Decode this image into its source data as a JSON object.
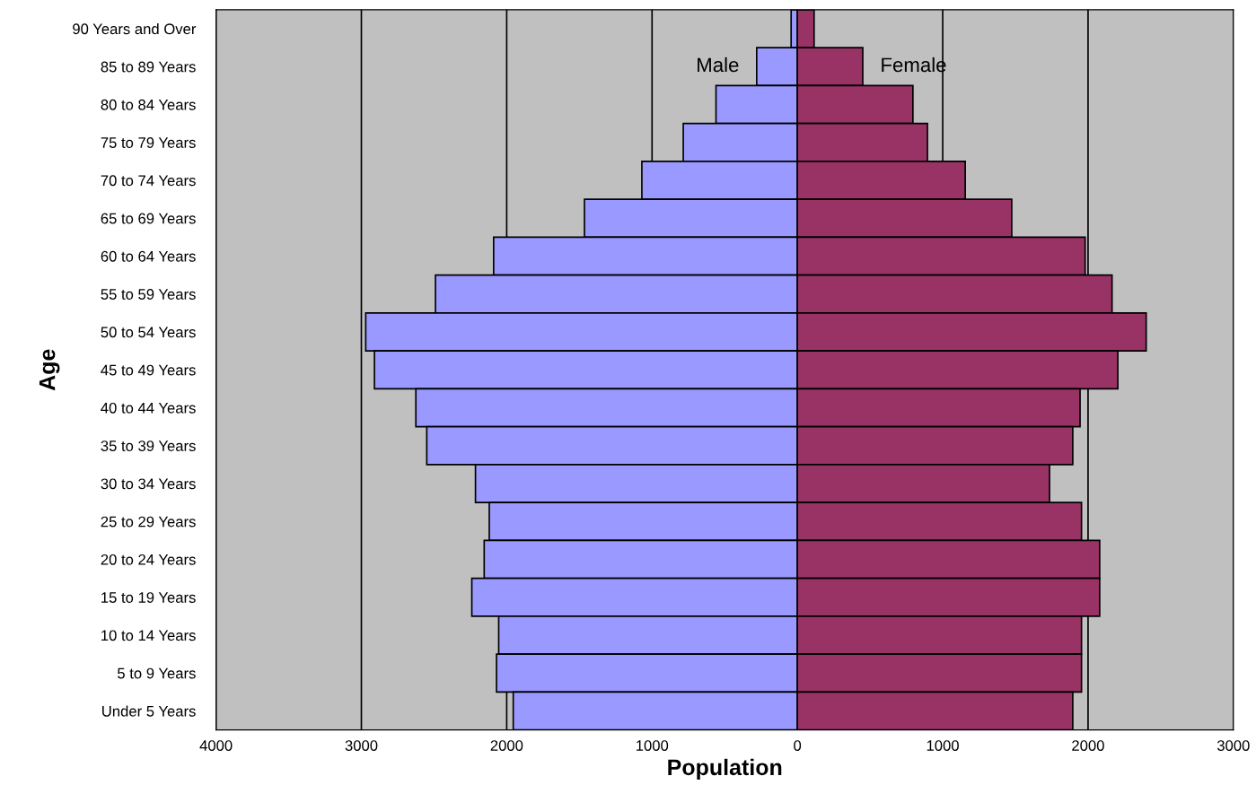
{
  "chart_data": {
    "type": "bar",
    "orientation": "horizontal",
    "xlabel": "Population",
    "ylabel": "Age",
    "categories": [
      "90 Years and Over",
      "85 to 89 Years",
      "80 to 84 Years",
      "75 to 79 Years",
      "70 to 74 Years",
      "65 to 69 Years",
      "60 to 64 Years",
      "55 to 59 Years",
      "50 to 54 Years",
      "45 to 49 Years",
      "40 to 44 Years",
      "35 to 39 Years",
      "30 to 34 Years",
      "25 to 29 Years",
      "20 to 24 Years",
      "15 to 19 Years",
      "10 to 14 Years",
      "5 to 9 Years",
      "Under 5 Years"
    ],
    "series": [
      {
        "name": "Male",
        "color": "#9999ff",
        "values": [
          -43,
          -280,
          -560,
          -785,
          -1070,
          -1465,
          -2090,
          -2490,
          -2970,
          -2910,
          -2625,
          -2550,
          -2215,
          -2120,
          -2155,
          -2240,
          -2055,
          -2070,
          -1955
        ]
      },
      {
        "name": "Female",
        "color": "#993366",
        "values": [
          115,
          450,
          795,
          895,
          1155,
          1475,
          1980,
          2165,
          2400,
          2205,
          1945,
          1895,
          1735,
          1955,
          2080,
          2080,
          1955,
          1955,
          1895
        ]
      }
    ],
    "xlim": [
      -4000,
      3000
    ],
    "xticks": [
      {
        "value": -4000,
        "label": "4000"
      },
      {
        "value": -3000,
        "label": "3000"
      },
      {
        "value": -2000,
        "label": "2000"
      },
      {
        "value": -1000,
        "label": "1000"
      },
      0,
      1000,
      2000,
      3000
    ],
    "grid": "x",
    "legend": false,
    "stacked": true
  }
}
